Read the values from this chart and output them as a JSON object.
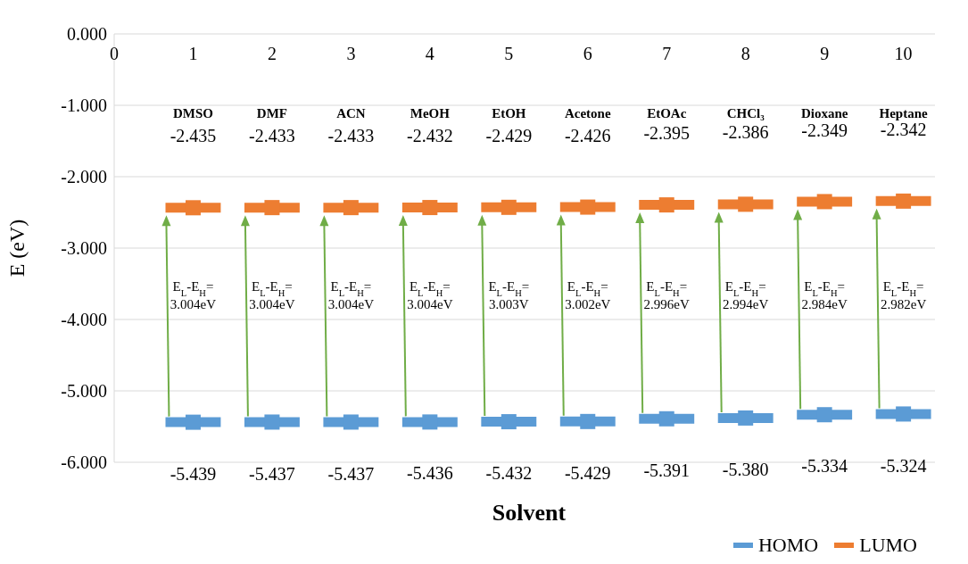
{
  "chart_data": {
    "type": "scatter",
    "xlabel": "Solvent",
    "ylabel": "E (eV)",
    "x": [
      1,
      2,
      3,
      4,
      5,
      6,
      7,
      8,
      9,
      10
    ],
    "series": [
      {
        "name": "HOMO",
        "color": "#5b9bd5",
        "values": [
          -5.439,
          -5.437,
          -5.437,
          -5.436,
          -5.432,
          -5.429,
          -5.391,
          -5.38,
          -5.334,
          -5.324
        ],
        "xerrors": [
          0.35,
          0.35,
          0.35,
          0.35,
          0.35,
          0.35,
          0.35,
          0.35,
          0.35,
          0.35
        ],
        "value_labels": [
          "-5.439",
          "-5.437",
          "-5.437",
          "-5.436",
          "-5.432",
          "-5.429",
          "-5.391",
          "-5.380",
          "-5.334",
          "-5.324"
        ]
      },
      {
        "name": "LUMO",
        "color": "#ed7d31",
        "values": [
          -2.435,
          -2.433,
          -2.433,
          -2.432,
          -2.429,
          -2.426,
          -2.395,
          -2.386,
          -2.349,
          -2.342
        ],
        "xerrors": [
          0.35,
          0.35,
          0.35,
          0.35,
          0.35,
          0.35,
          0.35,
          0.35,
          0.35,
          0.35
        ],
        "value_labels": [
          "-2.435",
          "-2.433",
          "-2.433",
          "-2.432",
          "-2.429",
          "-2.426",
          "-2.395",
          "-2.386",
          "-2.349",
          "-2.342"
        ]
      }
    ],
    "xlim": [
      0,
      10.4
    ],
    "xticks": [
      0,
      1,
      2,
      3,
      4,
      5,
      6,
      7,
      8,
      9,
      10
    ],
    "ylim": [
      -6,
      0
    ],
    "yticks": [
      {
        "value": -6,
        "label": "-6.000"
      },
      {
        "value": -5,
        "label": "-5.000"
      },
      {
        "value": -4,
        "label": "-4.000"
      },
      {
        "value": -3,
        "label": "-3.000"
      },
      {
        "value": -2,
        "label": "-2.000"
      },
      {
        "value": -1,
        "label": "-1.000"
      },
      {
        "value": 0,
        "label": "0.000"
      }
    ],
    "grid": "y",
    "legend": "bottom right",
    "marker": "square",
    "annotations": [
      "DMSO",
      "DMF",
      "ACN",
      "MeOH",
      "EtOH",
      "Acetone",
      "EtOAc",
      "CHCl₃",
      "Dioxane",
      "Heptane",
      "E$_{L}$-E$_{H}$=\n3.004eV",
      "E$_{L}$-E$_{H}$=\n3.004eV",
      "E$_{L}$-E$_{H}$=\n3.004eV",
      "E$_{L}$-E$_{H}$=\n3.004eV",
      "E$_{L}$-E$_{H}$=\n3.003V",
      "E$_{L}$-E$_{H}$=\n3.002eV",
      "E$_{L}$-E$_{H}$=\n2.996eV",
      "E$_{L}$-E$_{H}$=\n2.994eV",
      "E$_{L}$-E$_{H}$=\n2.984eV",
      "E$_{L}$-E$_{H}$=\n2.982eV"
    ]
  }
}
